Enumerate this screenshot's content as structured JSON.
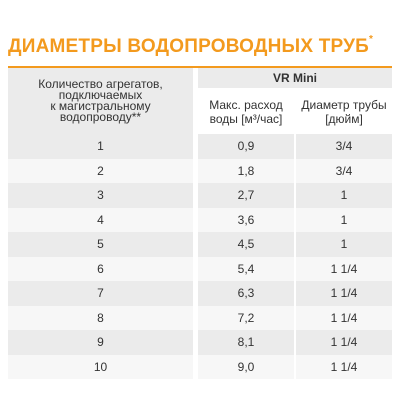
{
  "title": {
    "text": "ДИАМЕТРЫ ВОДОПРОВОДНЫХ ТРУБ",
    "mark": "*"
  },
  "table": {
    "col1_header_lines": [
      "Количество агрегатов,",
      "подключаемых",
      "к магистральному",
      "водопроводу**"
    ],
    "model": "VR Mini",
    "col2_header_lines": [
      "Макс. расход",
      "воды [м³/час]"
    ],
    "col3_header_lines": [
      "Диаметр трубы",
      "[дюйм]"
    ],
    "rows": [
      {
        "count": "1",
        "flow": "0,9",
        "diameter": "3/4"
      },
      {
        "count": "2",
        "flow": "1,8",
        "diameter": "3/4"
      },
      {
        "count": "3",
        "flow": "2,7",
        "diameter": "1"
      },
      {
        "count": "4",
        "flow": "3,6",
        "diameter": "1"
      },
      {
        "count": "5",
        "flow": "4,5",
        "diameter": "1"
      },
      {
        "count": "6",
        "flow": "5,4",
        "diameter": "1 1/4"
      },
      {
        "count": "7",
        "flow": "6,3",
        "diameter": "1 1/4"
      },
      {
        "count": "8",
        "flow": "7,2",
        "diameter": "1 1/4"
      },
      {
        "count": "9",
        "flow": "8,1",
        "diameter": "1 1/4"
      },
      {
        "count": "10",
        "flow": "9,0",
        "diameter": "1 1/4"
      }
    ]
  },
  "colors": {
    "accent": "#f39a1e",
    "row_dark": "#ebebeb",
    "row_light": "#f7f7f7",
    "text": "#333333"
  }
}
